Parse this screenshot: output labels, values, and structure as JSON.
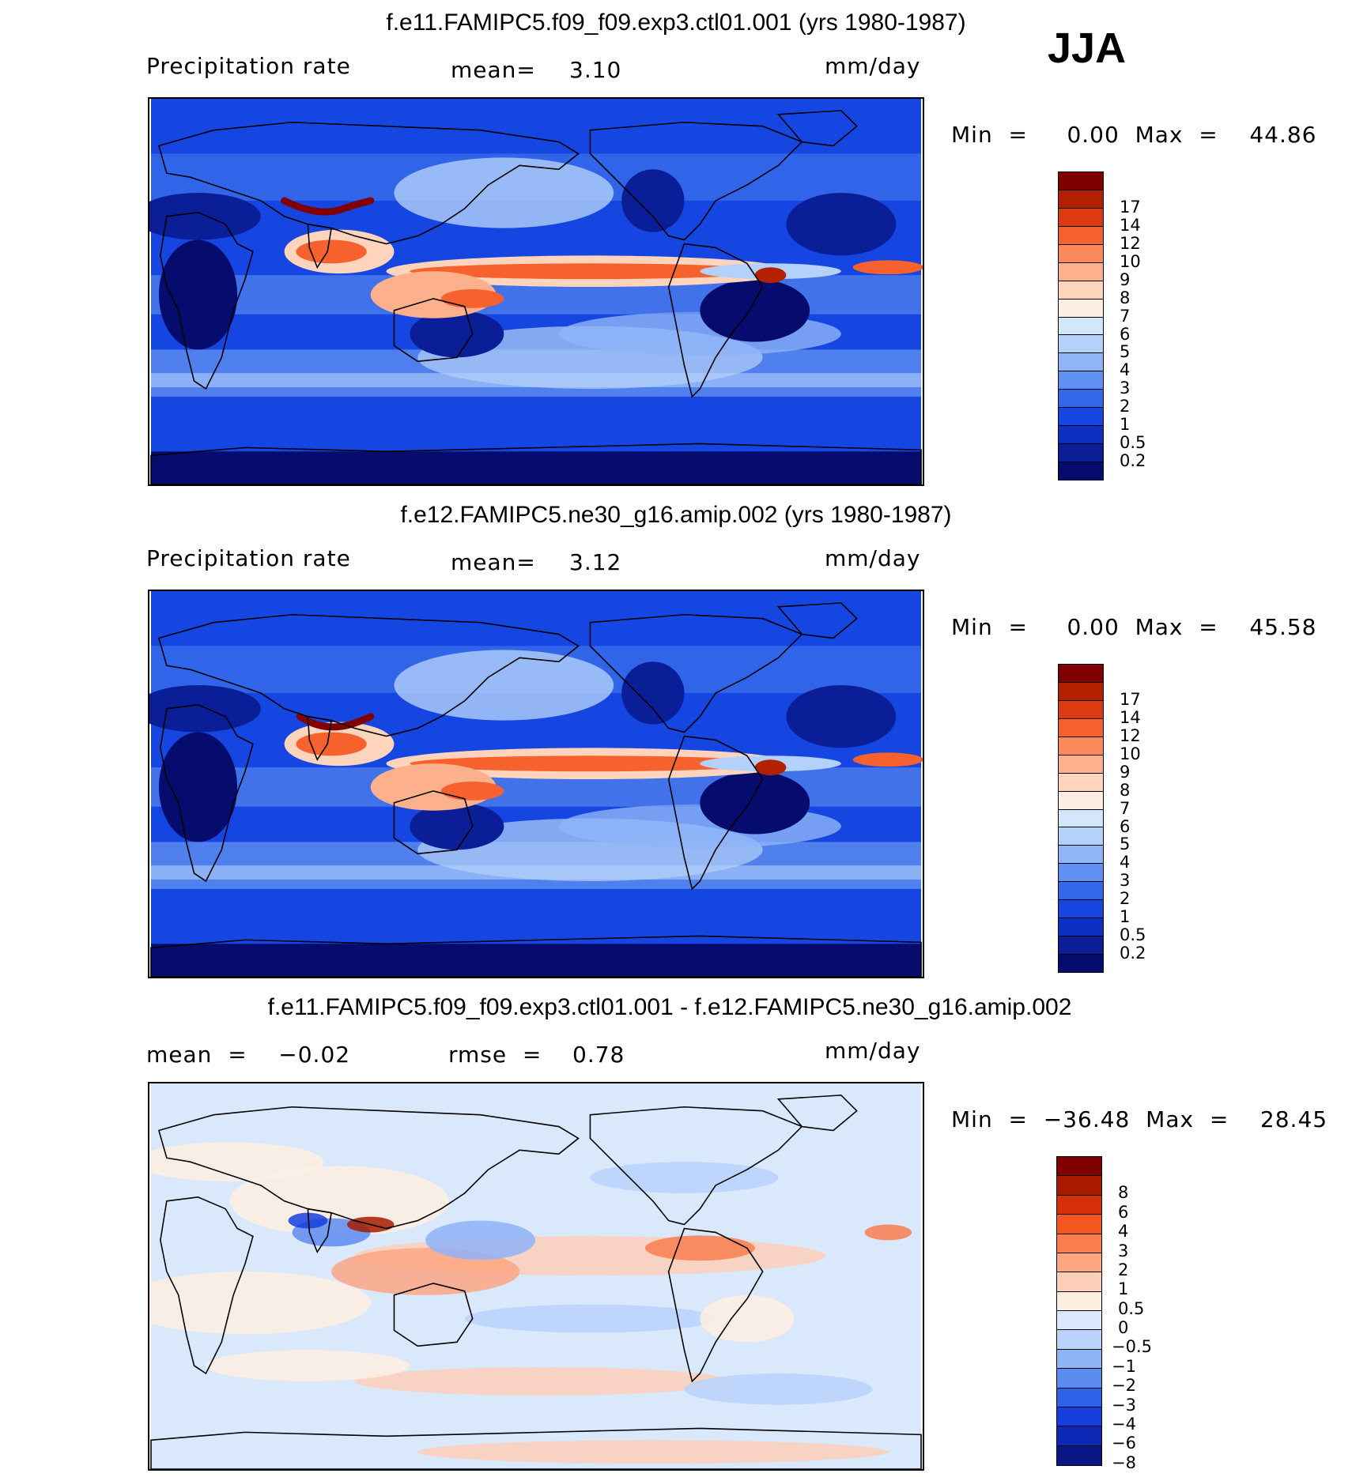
{
  "season": "JJA",
  "panels": [
    {
      "title": "f.e11.FAMIPC5.f09_f09.exp3.ctl01.001 (yrs 1980-1987)",
      "left_label": "Precipitation  rate",
      "mean_label": "mean=",
      "mean_value": "3.10",
      "units": "mm/day",
      "range_text": "Min  =     0.00  Max  =    44.86",
      "min": 0.0,
      "max": 44.86,
      "mean": 3.1,
      "kind": "precip",
      "colorbar": {
        "colors": [
          "#800000",
          "#b22000",
          "#dc3a10",
          "#f6612e",
          "#fb8a5b",
          "#fdb08c",
          "#fed4bc",
          "#fdeee2",
          "#d3e7fb",
          "#b3d1fa",
          "#8fb4f7",
          "#5f8ff0",
          "#3468ea",
          "#1646e2",
          "#0d30c4",
          "#0a1f97",
          "#050c6d"
        ],
        "labels": [
          "17",
          "14",
          "12",
          "10",
          "9",
          "8",
          "7",
          "6",
          "5",
          "4",
          "3",
          "2",
          "1",
          "0.5",
          "0.2"
        ]
      }
    },
    {
      "title": "f.e12.FAMIPC5.ne30_g16.amip.002 (yrs 1980-1987)",
      "left_label": "Precipitation  rate",
      "mean_label": "mean=",
      "mean_value": "3.12",
      "units": "mm/day",
      "range_text": "Min  =     0.00  Max  =    45.58",
      "min": 0.0,
      "max": 45.58,
      "mean": 3.12,
      "kind": "precip",
      "colorbar": {
        "colors": [
          "#800000",
          "#b22000",
          "#dc3a10",
          "#f6612e",
          "#fb8a5b",
          "#fdb08c",
          "#fed4bc",
          "#fdeee2",
          "#d3e7fb",
          "#b3d1fa",
          "#8fb4f7",
          "#5f8ff0",
          "#3468ea",
          "#1646e2",
          "#0d30c4",
          "#0a1f97",
          "#050c6d"
        ],
        "labels": [
          "17",
          "14",
          "12",
          "10",
          "9",
          "8",
          "7",
          "6",
          "5",
          "4",
          "3",
          "2",
          "1",
          "0.5",
          "0.2"
        ]
      }
    },
    {
      "title": "f.e11.FAMIPC5.f09_f09.exp3.ctl01.001 - f.e12.FAMIPC5.ne30_g16.amip.002",
      "left_label": "mean  =    −0.02",
      "mean_label": "rmse  =",
      "mean_value": "0.78",
      "units": "mm/day",
      "range_text": "Min  =  −36.48  Max  =    28.45",
      "min": -36.48,
      "max": 28.45,
      "mean": -0.02,
      "rmse": 0.78,
      "kind": "diff",
      "colorbar": {
        "colors": [
          "#800000",
          "#a81a00",
          "#d63008",
          "#f5551f",
          "#fa7d4f",
          "#fca682",
          "#fdcfb8",
          "#fdeee2",
          "#d9e8fb",
          "#b8d2fb",
          "#8fb3f7",
          "#5c8bf0",
          "#2f62e8",
          "#1540dd",
          "#0c28b4",
          "#081683"
        ],
        "labels": [
          "8",
          "6",
          "4",
          "3",
          "2",
          "1",
          "0.5",
          "0",
          "−0.5",
          "−1",
          "−2",
          "−3",
          "−4",
          "−6",
          "−8"
        ]
      }
    }
  ]
}
